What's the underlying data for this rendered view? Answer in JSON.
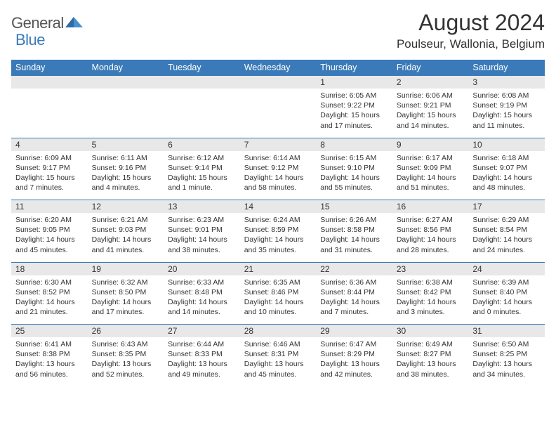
{
  "logo": {
    "text1": "General",
    "text2": "Blue"
  },
  "title": "August 2024",
  "location": "Poulseur, Wallonia, Belgium",
  "colors": {
    "header_bg": "#3a7ab8",
    "daynum_bg": "#e8e8e8",
    "text": "#333333",
    "page_bg": "#ffffff",
    "logo_gray": "#555555",
    "logo_blue": "#3a7ab8"
  },
  "day_headers": [
    "Sunday",
    "Monday",
    "Tuesday",
    "Wednesday",
    "Thursday",
    "Friday",
    "Saturday"
  ],
  "weeks": [
    {
      "nums": [
        "",
        "",
        "",
        "",
        "1",
        "2",
        "3"
      ],
      "cells": [
        null,
        null,
        null,
        null,
        {
          "sr": "Sunrise: 6:05 AM",
          "ss": "Sunset: 9:22 PM",
          "dl": "Daylight: 15 hours and 17 minutes."
        },
        {
          "sr": "Sunrise: 6:06 AM",
          "ss": "Sunset: 9:21 PM",
          "dl": "Daylight: 15 hours and 14 minutes."
        },
        {
          "sr": "Sunrise: 6:08 AM",
          "ss": "Sunset: 9:19 PM",
          "dl": "Daylight: 15 hours and 11 minutes."
        }
      ]
    },
    {
      "nums": [
        "4",
        "5",
        "6",
        "7",
        "8",
        "9",
        "10"
      ],
      "cells": [
        {
          "sr": "Sunrise: 6:09 AM",
          "ss": "Sunset: 9:17 PM",
          "dl": "Daylight: 15 hours and 7 minutes."
        },
        {
          "sr": "Sunrise: 6:11 AM",
          "ss": "Sunset: 9:16 PM",
          "dl": "Daylight: 15 hours and 4 minutes."
        },
        {
          "sr": "Sunrise: 6:12 AM",
          "ss": "Sunset: 9:14 PM",
          "dl": "Daylight: 15 hours and 1 minute."
        },
        {
          "sr": "Sunrise: 6:14 AM",
          "ss": "Sunset: 9:12 PM",
          "dl": "Daylight: 14 hours and 58 minutes."
        },
        {
          "sr": "Sunrise: 6:15 AM",
          "ss": "Sunset: 9:10 PM",
          "dl": "Daylight: 14 hours and 55 minutes."
        },
        {
          "sr": "Sunrise: 6:17 AM",
          "ss": "Sunset: 9:09 PM",
          "dl": "Daylight: 14 hours and 51 minutes."
        },
        {
          "sr": "Sunrise: 6:18 AM",
          "ss": "Sunset: 9:07 PM",
          "dl": "Daylight: 14 hours and 48 minutes."
        }
      ]
    },
    {
      "nums": [
        "11",
        "12",
        "13",
        "14",
        "15",
        "16",
        "17"
      ],
      "cells": [
        {
          "sr": "Sunrise: 6:20 AM",
          "ss": "Sunset: 9:05 PM",
          "dl": "Daylight: 14 hours and 45 minutes."
        },
        {
          "sr": "Sunrise: 6:21 AM",
          "ss": "Sunset: 9:03 PM",
          "dl": "Daylight: 14 hours and 41 minutes."
        },
        {
          "sr": "Sunrise: 6:23 AM",
          "ss": "Sunset: 9:01 PM",
          "dl": "Daylight: 14 hours and 38 minutes."
        },
        {
          "sr": "Sunrise: 6:24 AM",
          "ss": "Sunset: 8:59 PM",
          "dl": "Daylight: 14 hours and 35 minutes."
        },
        {
          "sr": "Sunrise: 6:26 AM",
          "ss": "Sunset: 8:58 PM",
          "dl": "Daylight: 14 hours and 31 minutes."
        },
        {
          "sr": "Sunrise: 6:27 AM",
          "ss": "Sunset: 8:56 PM",
          "dl": "Daylight: 14 hours and 28 minutes."
        },
        {
          "sr": "Sunrise: 6:29 AM",
          "ss": "Sunset: 8:54 PM",
          "dl": "Daylight: 14 hours and 24 minutes."
        }
      ]
    },
    {
      "nums": [
        "18",
        "19",
        "20",
        "21",
        "22",
        "23",
        "24"
      ],
      "cells": [
        {
          "sr": "Sunrise: 6:30 AM",
          "ss": "Sunset: 8:52 PM",
          "dl": "Daylight: 14 hours and 21 minutes."
        },
        {
          "sr": "Sunrise: 6:32 AM",
          "ss": "Sunset: 8:50 PM",
          "dl": "Daylight: 14 hours and 17 minutes."
        },
        {
          "sr": "Sunrise: 6:33 AM",
          "ss": "Sunset: 8:48 PM",
          "dl": "Daylight: 14 hours and 14 minutes."
        },
        {
          "sr": "Sunrise: 6:35 AM",
          "ss": "Sunset: 8:46 PM",
          "dl": "Daylight: 14 hours and 10 minutes."
        },
        {
          "sr": "Sunrise: 6:36 AM",
          "ss": "Sunset: 8:44 PM",
          "dl": "Daylight: 14 hours and 7 minutes."
        },
        {
          "sr": "Sunrise: 6:38 AM",
          "ss": "Sunset: 8:42 PM",
          "dl": "Daylight: 14 hours and 3 minutes."
        },
        {
          "sr": "Sunrise: 6:39 AM",
          "ss": "Sunset: 8:40 PM",
          "dl": "Daylight: 14 hours and 0 minutes."
        }
      ]
    },
    {
      "nums": [
        "25",
        "26",
        "27",
        "28",
        "29",
        "30",
        "31"
      ],
      "cells": [
        {
          "sr": "Sunrise: 6:41 AM",
          "ss": "Sunset: 8:38 PM",
          "dl": "Daylight: 13 hours and 56 minutes."
        },
        {
          "sr": "Sunrise: 6:43 AM",
          "ss": "Sunset: 8:35 PM",
          "dl": "Daylight: 13 hours and 52 minutes."
        },
        {
          "sr": "Sunrise: 6:44 AM",
          "ss": "Sunset: 8:33 PM",
          "dl": "Daylight: 13 hours and 49 minutes."
        },
        {
          "sr": "Sunrise: 6:46 AM",
          "ss": "Sunset: 8:31 PM",
          "dl": "Daylight: 13 hours and 45 minutes."
        },
        {
          "sr": "Sunrise: 6:47 AM",
          "ss": "Sunset: 8:29 PM",
          "dl": "Daylight: 13 hours and 42 minutes."
        },
        {
          "sr": "Sunrise: 6:49 AM",
          "ss": "Sunset: 8:27 PM",
          "dl": "Daylight: 13 hours and 38 minutes."
        },
        {
          "sr": "Sunrise: 6:50 AM",
          "ss": "Sunset: 8:25 PM",
          "dl": "Daylight: 13 hours and 34 minutes."
        }
      ]
    }
  ]
}
